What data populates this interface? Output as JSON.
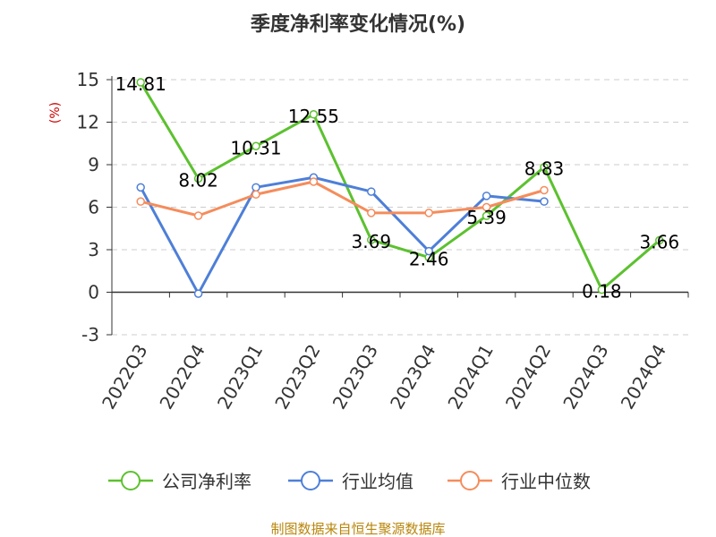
{
  "chart_data": {
    "type": "line",
    "title": "季度净利率变化情况(%)",
    "ylabel": "(%)",
    "categories": [
      "2022Q3",
      "2022Q4",
      "2023Q1",
      "2023Q2",
      "2023Q3",
      "2023Q4",
      "2024Q1",
      "2024Q2",
      "2024Q3",
      "2024Q4"
    ],
    "yticks": [
      "15",
      "12",
      "9",
      "6",
      "3",
      "0",
      "-3"
    ],
    "ylim": [
      -3,
      15
    ],
    "grid": true,
    "legend_position": "bottom",
    "series": [
      {
        "name": "公司净利率",
        "color": "#5cc12f",
        "values": [
          14.81,
          8.02,
          10.31,
          12.55,
          3.69,
          2.46,
          5.39,
          8.83,
          0.18,
          3.66
        ],
        "labels": [
          "14.81",
          "8.02",
          "10.31",
          "12.55",
          "3.69",
          "2.46",
          "5.39",
          "8.83",
          "0.18",
          "3.66"
        ]
      },
      {
        "name": "行业均值",
        "color": "#4e7fd8",
        "values": [
          7.4,
          -0.1,
          7.4,
          8.1,
          7.1,
          2.9,
          6.8,
          6.4,
          null,
          null
        ]
      },
      {
        "name": "行业中位数",
        "color": "#f58c5c",
        "values": [
          6.4,
          5.4,
          6.9,
          7.8,
          5.6,
          5.6,
          6.0,
          7.2,
          null,
          null
        ]
      }
    ]
  },
  "source": {
    "text": "制图数据来自恒生聚源数据库",
    "color": "#b8860b"
  },
  "unit_color": "#cc0000"
}
